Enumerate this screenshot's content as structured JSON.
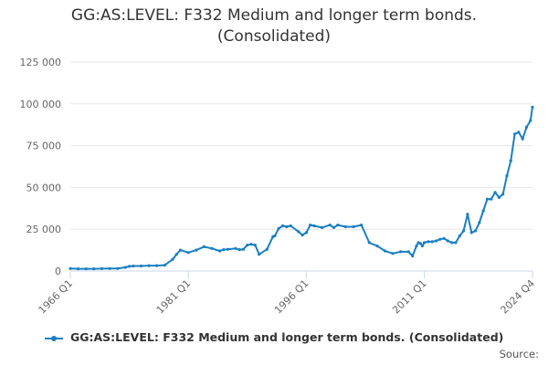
{
  "chart_data": {
    "type": "line",
    "title": "GG:AS:LEVEL: F332 Medium and longer term bonds. (Consolidated)",
    "title_lines": [
      "GG:AS:LEVEL: F332 Medium and longer term bonds.",
      "(Consolidated)"
    ],
    "xlabel": "",
    "ylabel": "",
    "ylim": [
      0,
      125000
    ],
    "yticks": [
      0,
      25000,
      50000,
      75000,
      100000,
      125000
    ],
    "ytick_labels": [
      "0",
      "25 000",
      "50 000",
      "75 000",
      "100 000",
      "125 000"
    ],
    "xlim": [
      1966.0,
      2024.75
    ],
    "xticks": [
      1966.0,
      1981.0,
      1996.0,
      2011.0,
      2024.75
    ],
    "xtick_labels": [
      "1966 Q1",
      "1981 Q1",
      "1996 Q1",
      "2011 Q1",
      "2024 Q4"
    ],
    "grid": "horizontal",
    "legend_position": "bottom",
    "series": [
      {
        "name": "GG:AS:LEVEL: F332 Medium and longer term bonds. (Consolidated)",
        "color": "#1a7fc1",
        "x": [
          1966.0,
          1967.0,
          1968.0,
          1969.0,
          1970.0,
          1971.0,
          1972.0,
          1973.0,
          1973.5,
          1974.0,
          1975.0,
          1976.0,
          1977.0,
          1978.0,
          1979.0,
          1979.5,
          1980.0,
          1981.0,
          1982.0,
          1983.0,
          1984.0,
          1985.0,
          1985.5,
          1986.0,
          1987.0,
          1987.5,
          1988.0,
          1988.5,
          1989.0,
          1989.5,
          1990.0,
          1991.0,
          1991.75,
          1992.0,
          1992.5,
          1993.0,
          1993.5,
          1994.0,
          1995.0,
          1995.5,
          1996.0,
          1996.5,
          1997.0,
          1998.0,
          1999.0,
          1999.5,
          2000.0,
          2001.0,
          2002.0,
          2003.0,
          2004.0,
          2005.0,
          2006.0,
          2007.0,
          2008.0,
          2009.0,
          2009.5,
          2010.0,
          2010.25,
          2010.5,
          2010.75,
          2011.0,
          2011.5,
          2012.0,
          2012.5,
          2013.0,
          2013.5,
          2014.0,
          2014.5,
          2015.0,
          2015.5,
          2016.0,
          2016.5,
          2017.0,
          2017.5,
          2018.0,
          2018.5,
          2019.0,
          2019.5,
          2020.0,
          2020.5,
          2021.0,
          2021.5,
          2022.0,
          2022.5,
          2023.0,
          2023.5,
          2024.0,
          2024.5,
          2024.75
        ],
        "values": [
          1500,
          1300,
          1300,
          1300,
          1400,
          1500,
          1500,
          2200,
          2800,
          3000,
          3000,
          3200,
          3200,
          3500,
          7000,
          10000,
          12500,
          11000,
          12500,
          14500,
          13500,
          12000,
          12800,
          13000,
          13500,
          12800,
          13000,
          15500,
          16000,
          15500,
          10000,
          13000,
          20500,
          21000,
          25500,
          27000,
          26500,
          27000,
          23500,
          21500,
          23000,
          27500,
          27000,
          26000,
          27500,
          26000,
          27500,
          26500,
          26500,
          27500,
          17000,
          15000,
          12000,
          10500,
          11500,
          11500,
          9000,
          15000,
          17000,
          16500,
          15000,
          17000,
          17500,
          17500,
          18000,
          19000,
          19500,
          18000,
          17000,
          17000,
          21000,
          24000,
          34000,
          23000,
          24000,
          29000,
          36000,
          43000,
          43000,
          47000,
          44000,
          46000,
          57000,
          66000,
          82000,
          83000,
          79000,
          86000,
          90000,
          98000
        ]
      }
    ]
  },
  "source_label": "Source:"
}
